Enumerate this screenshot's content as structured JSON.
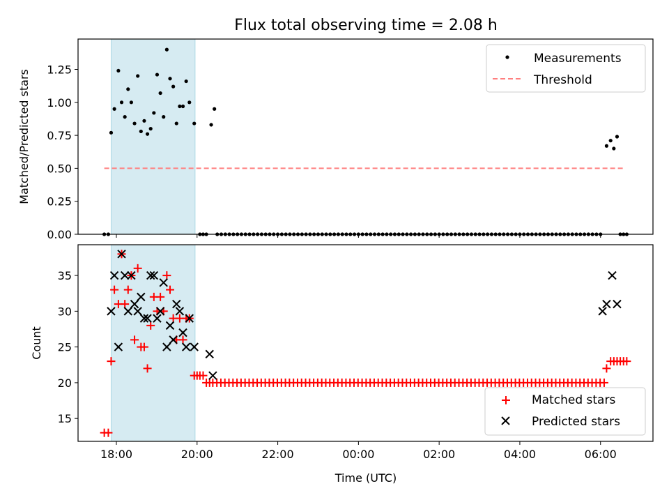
{
  "figure": {
    "title": "Flux total observing time = 2.08 h",
    "xlabel": "Time (UTC)",
    "xtick_labels": [
      "18:00",
      "20:00",
      "22:00",
      "00:00",
      "02:00",
      "04:00",
      "06:00"
    ]
  },
  "colors": {
    "band": "#add8e6",
    "threshold": "#ff7f7f",
    "matched": "#ff0000",
    "predicted": "#000000",
    "measurement": "#000000"
  },
  "chart_data": [
    {
      "type": "scatter",
      "ylabel": "Matched/Predicted stars",
      "x_unit": "hours since 18:00 UTC",
      "xlim": [
        -0.95,
        13.3
      ],
      "ylim": [
        0,
        1.48
      ],
      "yticks": [
        0.0,
        0.25,
        0.5,
        0.75,
        1.0,
        1.25
      ],
      "ytick_labels": [
        "0.00",
        "0.25",
        "0.50",
        "0.75",
        "1.00",
        "1.25"
      ],
      "shaded_band": [
        -0.13,
        1.95
      ],
      "legend": {
        "position": "top-right",
        "entries": [
          "Measurements",
          "Threshold"
        ]
      },
      "threshold": {
        "name": "Threshold",
        "y": 0.5,
        "x_range": [
          -0.3,
          12.6
        ]
      },
      "series": [
        {
          "name": "Measurements",
          "points": [
            [
              -0.3,
              0
            ],
            [
              -0.2,
              0
            ],
            [
              -0.13,
              0.77
            ],
            [
              -0.05,
              0.95
            ],
            [
              0.05,
              1.24
            ],
            [
              0.13,
              1.0
            ],
            [
              0.21,
              0.89
            ],
            [
              0.29,
              1.1
            ],
            [
              0.37,
              1.0
            ],
            [
              0.45,
              0.84
            ],
            [
              0.53,
              1.2
            ],
            [
              0.61,
              0.78
            ],
            [
              0.69,
              0.86
            ],
            [
              0.77,
              0.76
            ],
            [
              0.85,
              0.8
            ],
            [
              0.93,
              0.92
            ],
            [
              1.01,
              1.21
            ],
            [
              1.09,
              1.07
            ],
            [
              1.17,
              0.89
            ],
            [
              1.25,
              1.4
            ],
            [
              1.33,
              1.18
            ],
            [
              1.41,
              1.12
            ],
            [
              1.49,
              0.84
            ],
            [
              1.57,
              0.97
            ],
            [
              1.65,
              0.97
            ],
            [
              1.73,
              1.16
            ],
            [
              1.81,
              1.0
            ],
            [
              1.93,
              0.84
            ],
            [
              2.07,
              0
            ],
            [
              2.15,
              0
            ],
            [
              2.23,
              0
            ],
            [
              2.35,
              0.83
            ],
            [
              2.43,
              0.95
            ],
            [
              12.15,
              0.67
            ],
            [
              12.25,
              0.71
            ],
            [
              12.33,
              0.65
            ],
            [
              12.41,
              0.74
            ],
            [
              12.49,
              0
            ],
            [
              12.57,
              0
            ],
            [
              12.65,
              0
            ]
          ]
        }
      ]
    },
    {
      "type": "scatter",
      "ylabel": "Count",
      "x_unit": "hours since 18:00 UTC",
      "xlim": [
        -0.95,
        13.3
      ],
      "ylim": [
        11.8,
        39.3
      ],
      "yticks": [
        15,
        20,
        25,
        30,
        35
      ],
      "ytick_labels": [
        "15",
        "20",
        "25",
        "30",
        "35"
      ],
      "shaded_band": [
        -0.13,
        1.95
      ],
      "legend": {
        "position": "bottom-right",
        "entries": [
          "Matched stars",
          "Predicted stars"
        ]
      },
      "series": [
        {
          "name": "Matched stars",
          "marker": "plus",
          "points": [
            [
              -0.3,
              13
            ],
            [
              -0.2,
              13
            ],
            [
              -0.13,
              23
            ],
            [
              -0.05,
              33
            ],
            [
              0.05,
              31
            ],
            [
              0.13,
              38
            ],
            [
              0.21,
              31
            ],
            [
              0.29,
              33
            ],
            [
              0.37,
              35
            ],
            [
              0.45,
              26
            ],
            [
              0.53,
              36
            ],
            [
              0.61,
              25
            ],
            [
              0.69,
              25
            ],
            [
              0.77,
              22
            ],
            [
              0.85,
              28
            ],
            [
              0.93,
              32
            ],
            [
              1.01,
              30
            ],
            [
              1.09,
              32
            ],
            [
              1.17,
              30
            ],
            [
              1.25,
              35
            ],
            [
              1.33,
              33
            ],
            [
              1.41,
              29
            ],
            [
              1.49,
              26
            ],
            [
              1.57,
              29
            ],
            [
              1.65,
              26
            ],
            [
              1.73,
              29
            ],
            [
              1.81,
              29
            ],
            [
              1.93,
              21
            ],
            [
              2.0,
              21
            ],
            [
              2.07,
              21
            ],
            [
              2.15,
              21
            ],
            [
              2.23,
              20
            ],
            [
              2.31,
              20
            ],
            [
              12.15,
              22
            ],
            [
              12.25,
              23
            ],
            [
              12.33,
              23
            ],
            [
              12.41,
              23
            ],
            [
              12.49,
              23
            ],
            [
              12.57,
              23
            ],
            [
              12.65,
              23
            ]
          ]
        },
        {
          "name": "Predicted stars",
          "marker": "x",
          "points": [
            [
              -0.13,
              30
            ],
            [
              -0.05,
              35
            ],
            [
              0.05,
              25
            ],
            [
              0.13,
              38
            ],
            [
              0.21,
              35
            ],
            [
              0.29,
              30
            ],
            [
              0.37,
              35
            ],
            [
              0.45,
              31
            ],
            [
              0.53,
              30
            ],
            [
              0.61,
              32
            ],
            [
              0.69,
              29
            ],
            [
              0.77,
              29
            ],
            [
              0.85,
              35
            ],
            [
              0.93,
              35
            ],
            [
              1.01,
              29
            ],
            [
              1.09,
              30
            ],
            [
              1.17,
              34
            ],
            [
              1.25,
              25
            ],
            [
              1.33,
              28
            ],
            [
              1.41,
              26
            ],
            [
              1.49,
              31
            ],
            [
              1.57,
              30
            ],
            [
              1.65,
              27
            ],
            [
              1.73,
              25
            ],
            [
              1.81,
              29
            ],
            [
              1.93,
              25
            ],
            [
              2.31,
              24
            ],
            [
              2.39,
              21
            ],
            [
              12.05,
              30
            ],
            [
              12.15,
              31
            ],
            [
              12.29,
              35
            ],
            [
              12.41,
              31
            ]
          ]
        }
      ],
      "baseline_run": {
        "series": "Matched stars",
        "y": 20,
        "x_start": 2.39,
        "x_end": 12.1,
        "step": 0.1
      }
    }
  ],
  "zero_run_top": {
    "y": 0,
    "x_start": 2.5,
    "x_end": 12.05,
    "step": 0.1
  }
}
